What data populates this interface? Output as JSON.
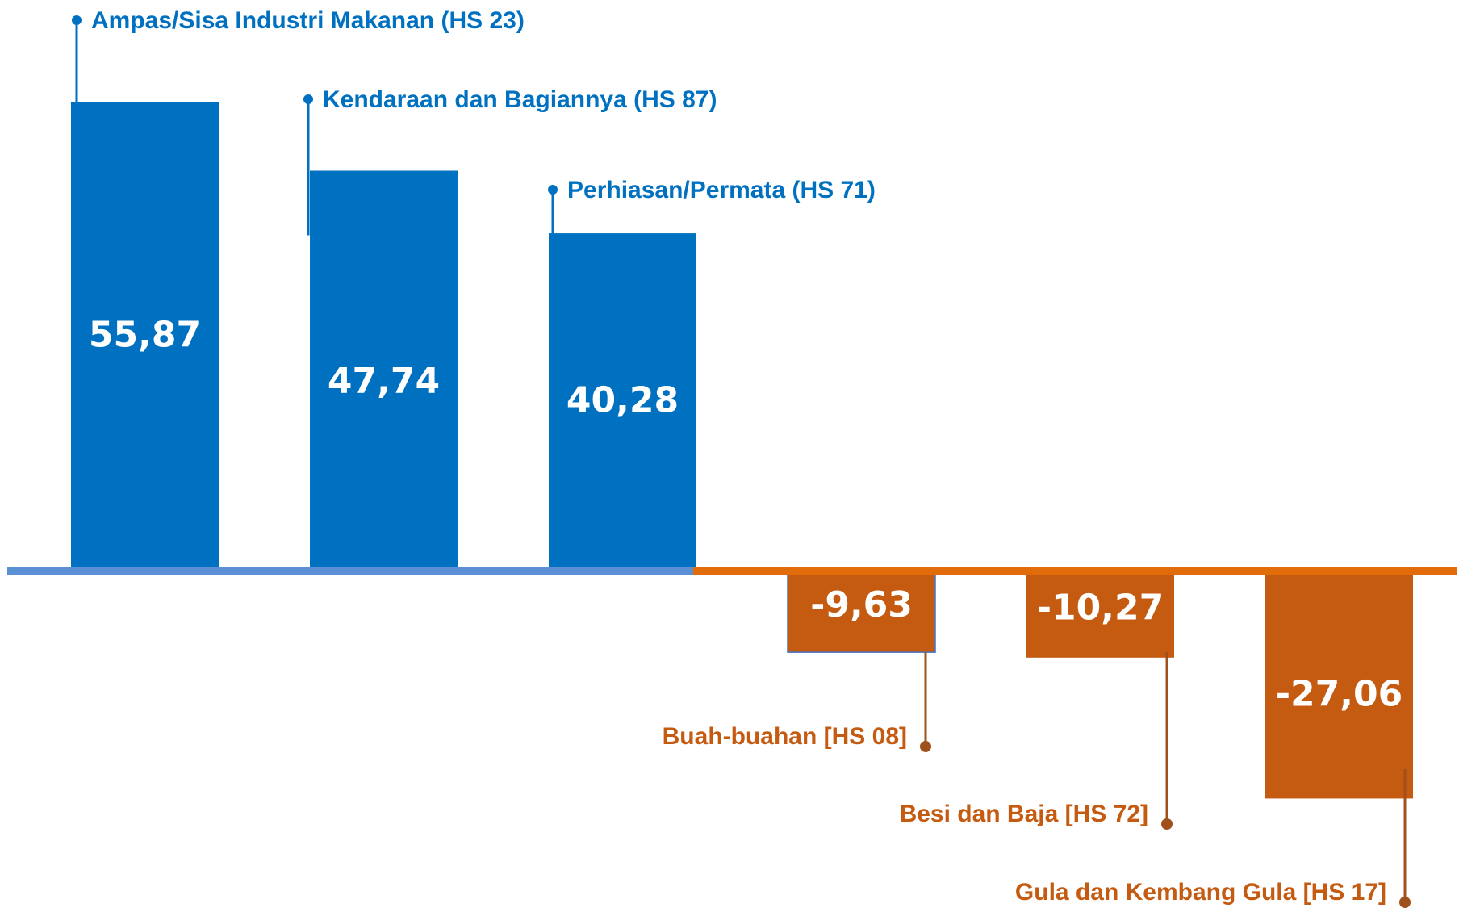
{
  "chart_data": {
    "type": "bar",
    "categories": [
      "Ampas/Sisa Industri Makanan (HS 23)",
      "Kendaraan dan Bagiannya (HS 87)",
      "Perhiasan/Permata (HS 71)",
      "Buah-buahan [HS 08]",
      "Besi dan Baja [HS 72]",
      "Gula dan Kembang Gula [HS 17]"
    ],
    "values": [
      55.87,
      47.74,
      40.28,
      -9.63,
      -10.27,
      -27.06
    ],
    "value_labels": [
      "55,87",
      "47,74",
      "40,28",
      "-9,63",
      "-10,27",
      "-27,06"
    ],
    "colors": {
      "positive": "#0070c0",
      "negative": "#c55a11"
    }
  }
}
